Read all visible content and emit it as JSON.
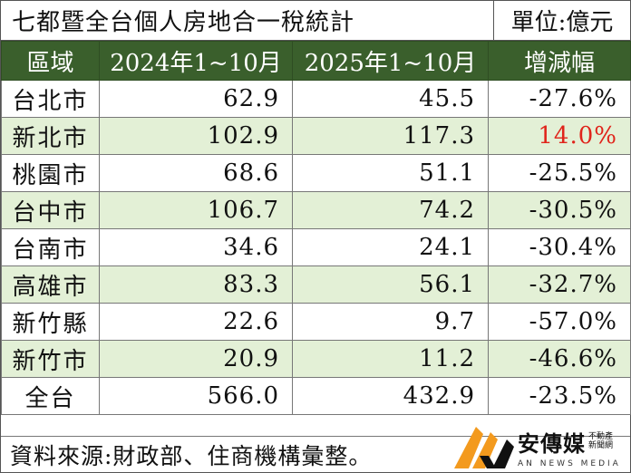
{
  "title": "七都暨全台個人房地合一稅統計",
  "unit": "單位:億元",
  "columns": [
    "區域",
    "2024年1~10月",
    "2025年1~10月",
    "增減幅"
  ],
  "rows": [
    {
      "region": "台北市",
      "y2024": "62.9",
      "y2025": "45.5",
      "change": "-27.6%"
    },
    {
      "region": "新北市",
      "y2024": "102.9",
      "y2025": "117.3",
      "change": "14.0%"
    },
    {
      "region": "桃園市",
      "y2024": "68.6",
      "y2025": "51.1",
      "change": "-25.5%"
    },
    {
      "region": "台中市",
      "y2024": "106.7",
      "y2025": "74.2",
      "change": "-30.5%"
    },
    {
      "region": "台南市",
      "y2024": "34.6",
      "y2025": "24.1",
      "change": "-30.4%"
    },
    {
      "region": "高雄市",
      "y2024": "83.3",
      "y2025": "56.1",
      "change": "-32.7%"
    },
    {
      "region": "新竹縣",
      "y2024": "22.6",
      "y2025": "9.7",
      "change": "-57.0%"
    },
    {
      "region": "新竹市",
      "y2024": "20.9",
      "y2025": "11.2",
      "change": "-46.6%"
    },
    {
      "region": "全台",
      "y2024": "566.0",
      "y2025": "432.9",
      "change": "-23.5%"
    }
  ],
  "source": "資料來源:財政部、住商機構彙整。",
  "logo": {
    "name": "安傳媒",
    "sub1": "不動產",
    "sub2": "新聞網",
    "en": "AN NEWS MEDIA"
  },
  "colors": {
    "header_bg": "#3a5f2c",
    "alt_row_bg": "#e3f0d6",
    "positive": "#e0241b",
    "logo_orange": "#f39a1e"
  }
}
